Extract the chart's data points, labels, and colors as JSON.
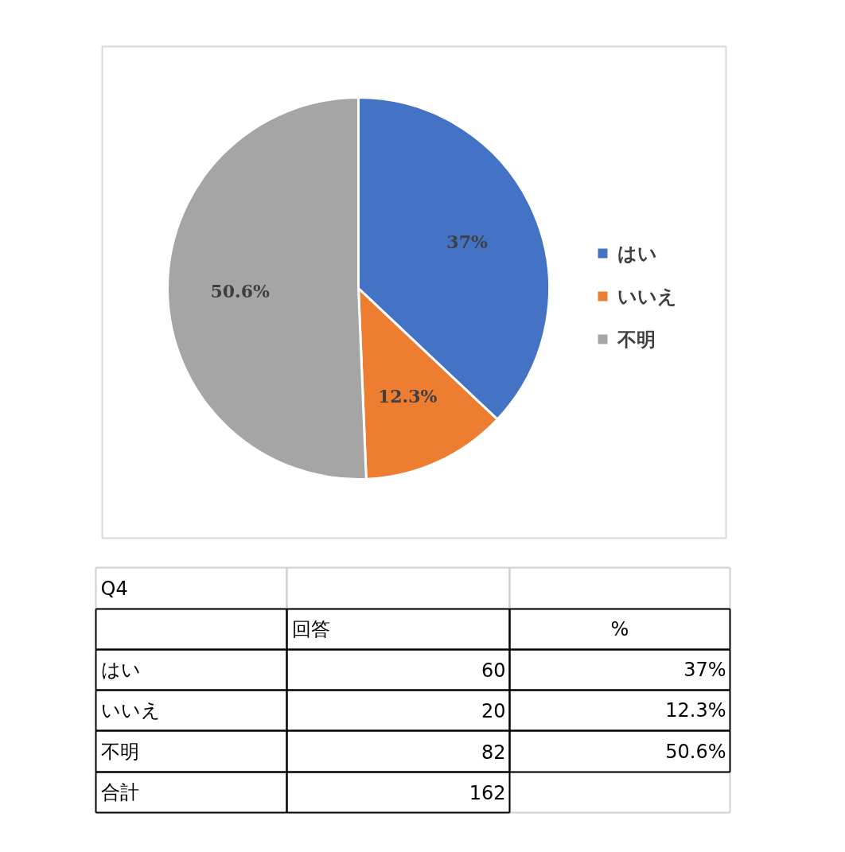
{
  "chart_data": {
    "type": "pie",
    "title": "Q4",
    "categories": [
      "はい",
      "いいえ",
      "不明"
    ],
    "values": [
      37,
      12.3,
      50.6
    ],
    "colors": [
      "#4472c4",
      "#ed7d31",
      "#a5a5a5"
    ],
    "value_labels": [
      "37%",
      "12.3%",
      "50.6%"
    ],
    "legend": "right",
    "annotations": [
      "回答",
      "%",
      "60",
      "20",
      "82",
      "合計",
      "162"
    ]
  }
}
